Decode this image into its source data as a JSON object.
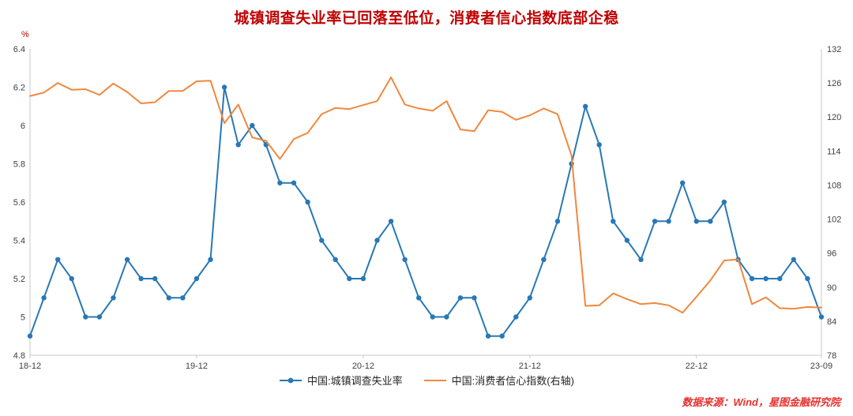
{
  "title": "城镇调查失业率已回落至低位，消费者信心指数底部企稳",
  "unit_label": "%",
  "source_note": "数据来源：Wind，星图金融研究院",
  "colors": {
    "title": "#C00000",
    "unit": "#C00000",
    "source": "#E8312F",
    "axis_text": "#404040",
    "axis_line": "#C9C9C9",
    "unemployment_blue": "#2878B5",
    "confidence_orange": "#F0883E"
  },
  "chart_data": {
    "type": "line",
    "title": "城镇调查失业率已回落至低位，消费者信心指数底部企稳",
    "xlabel": "",
    "ylabel_left": "%",
    "ylabel_right": "",
    "grid": false,
    "legend_position": "bottom-center",
    "n_points": 58,
    "x_tick_labels": [
      {
        "index": 0,
        "label": "18-12"
      },
      {
        "index": 12,
        "label": "19-12"
      },
      {
        "index": 24,
        "label": "20-12"
      },
      {
        "index": 36,
        "label": "21-12"
      },
      {
        "index": 48,
        "label": "22-12"
      },
      {
        "index": 57,
        "label": "23-09"
      }
    ],
    "left_axis": {
      "min": 4.8,
      "max": 6.4,
      "ticks": [
        "4.8",
        "5",
        "5.2",
        "5.4",
        "5.6",
        "5.8",
        "6",
        "6.2",
        "6.4"
      ]
    },
    "right_axis": {
      "min": 78,
      "max": 132,
      "ticks": [
        "78",
        "84",
        "90",
        "96",
        "102",
        "108",
        "114",
        "120",
        "126",
        "132"
      ]
    },
    "series": [
      {
        "name": "中国:城镇调查失业率",
        "axis": "left",
        "color": "#2878B5",
        "marker": true,
        "values": [
          4.9,
          5.1,
          5.3,
          5.2,
          5.0,
          5.0,
          5.1,
          5.3,
          5.2,
          5.2,
          5.1,
          5.1,
          5.2,
          5.3,
          6.2,
          5.9,
          6.0,
          5.9,
          5.7,
          5.7,
          5.6,
          5.4,
          5.3,
          5.2,
          5.2,
          5.4,
          5.5,
          5.3,
          5.1,
          5.0,
          5.0,
          5.1,
          5.1,
          4.9,
          4.9,
          5.0,
          5.1,
          5.3,
          5.5,
          5.8,
          6.1,
          5.9,
          5.5,
          5.4,
          5.3,
          5.5,
          5.5,
          5.7,
          5.5,
          5.5,
          5.6,
          5.3,
          5.2,
          5.2,
          5.2,
          5.3,
          5.2,
          5.0
        ]
      },
      {
        "name": "中国:消费者信心指数(右轴)",
        "axis": "right",
        "color": "#F0883E",
        "marker": false,
        "values": [
          123.7,
          124.3,
          126.0,
          124.8,
          124.9,
          123.9,
          125.9,
          124.4,
          122.4,
          122.6,
          124.6,
          124.6,
          126.3,
          126.4,
          118.9,
          122.2,
          116.4,
          115.8,
          112.6,
          116.1,
          117.2,
          120.5,
          121.6,
          121.4,
          122.1,
          122.8,
          127.0,
          122.2,
          121.5,
          121.1,
          122.8,
          117.8,
          117.5,
          121.2,
          120.9,
          119.5,
          120.3,
          121.5,
          120.5,
          113.2,
          86.7,
          86.8,
          88.9,
          87.9,
          87.0,
          87.2,
          86.8,
          85.5,
          88.3,
          91.2,
          94.7,
          94.9,
          87.0,
          88.2,
          86.3,
          86.2,
          86.5,
          86.4
        ]
      }
    ]
  }
}
